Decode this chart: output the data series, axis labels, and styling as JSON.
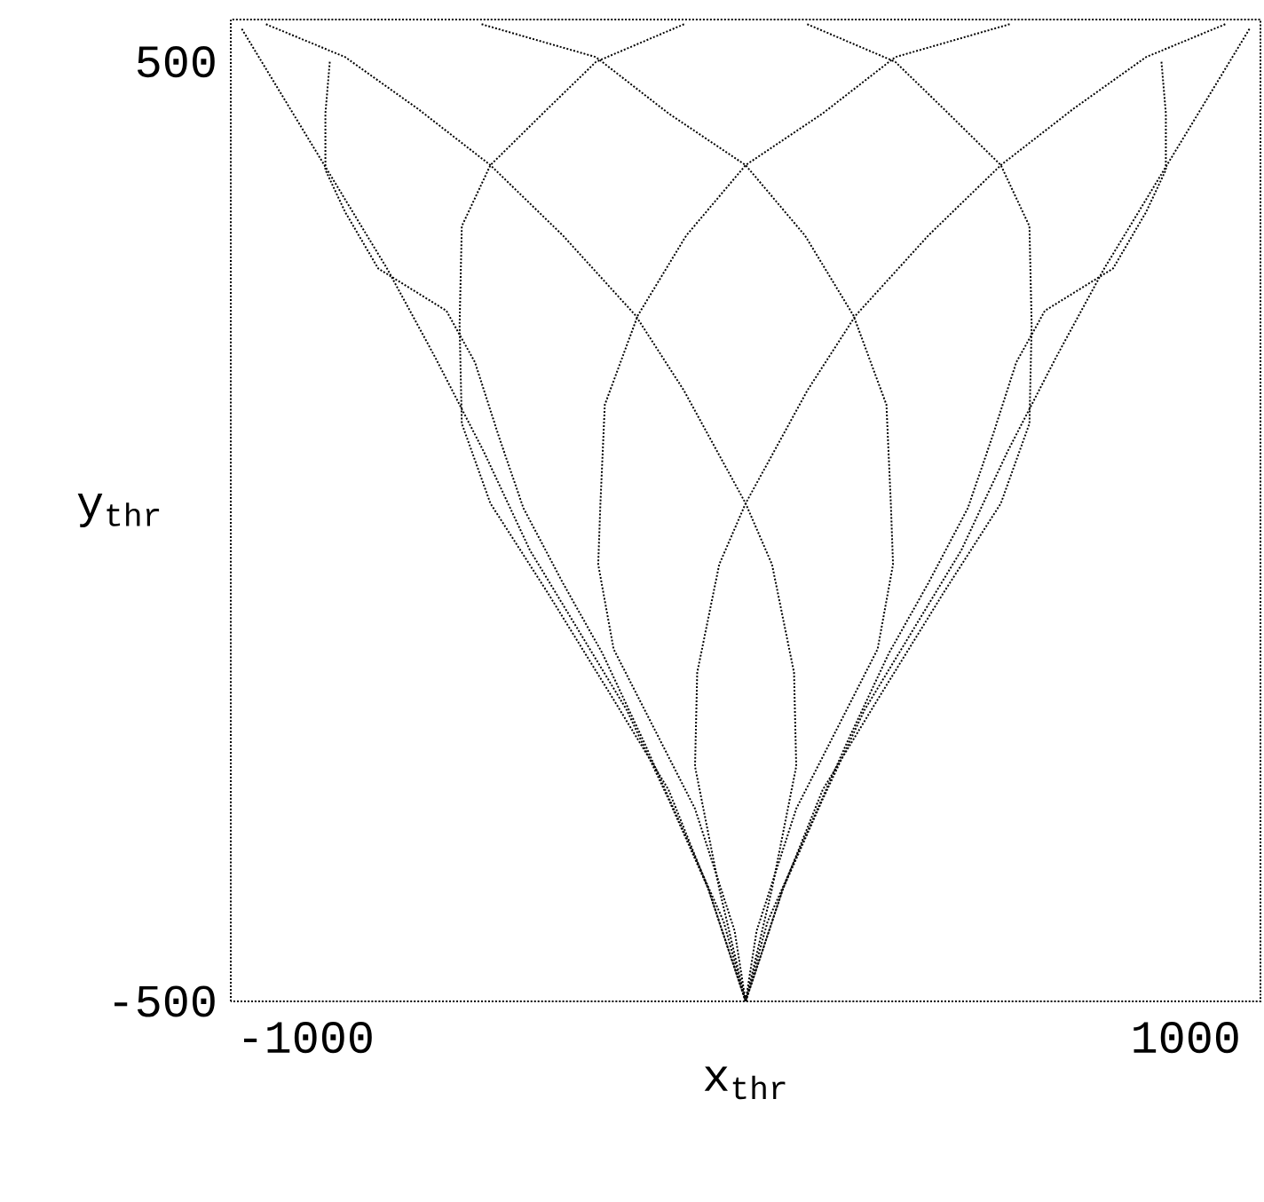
{
  "chart_data": {
    "type": "line",
    "xlabel": "x$_{thr}$",
    "ylabel": "y$_{thr}$",
    "xlim": [
      -1170,
      1170
    ],
    "ylim": [
      -500,
      545
    ],
    "xticks": [
      -1000,
      1000
    ],
    "yticks": [
      -500,
      500
    ],
    "marker": "none",
    "line_style": "dotted",
    "series": [
      {
        "color": "#000000",
        "x": [
          -1145,
          -1035,
          -925,
          -815,
          -705,
          -595,
          -490,
          -380,
          -270,
          -175,
          -85,
          0
        ],
        "values": [
          535,
          450,
          365,
          280,
          185,
          85,
          -20,
          -105,
          -190,
          -285,
          -380,
          -500
        ]
      },
      {
        "color": "#000000",
        "x": [
          1145,
          1035,
          925,
          815,
          705,
          595,
          490,
          380,
          270,
          175,
          85,
          0
        ],
        "values": [
          535,
          450,
          365,
          280,
          185,
          85,
          -20,
          -105,
          -190,
          -285,
          -380,
          -500
        ]
      },
      {
        "color": "#000000",
        "x": [
          -945,
          -955,
          -955,
          -910,
          -835,
          -680,
          -615,
          -560,
          -505,
          -415,
          -325,
          -230,
          -140,
          -50,
          0
        ],
        "values": [
          500,
          445,
          385,
          340,
          280,
          235,
          180,
          100,
          25,
          -55,
          -130,
          -225,
          -320,
          -415,
          -500
        ]
      },
      {
        "color": "#000000",
        "x": [
          945,
          955,
          955,
          910,
          835,
          680,
          615,
          560,
          505,
          415,
          325,
          230,
          140,
          50,
          0
        ],
        "values": [
          500,
          445,
          385,
          340,
          280,
          235,
          180,
          100,
          25,
          -55,
          -130,
          -225,
          -320,
          -415,
          -500
        ]
      },
      {
        "color": "#000000",
        "x": [
          -1090,
          -910,
          -745,
          -580,
          -415,
          -250,
          -140,
          0,
          60,
          110,
          115,
          60,
          0
        ],
        "values": [
          540,
          505,
          450,
          390,
          315,
          230,
          150,
          30,
          -35,
          -150,
          -250,
          -380,
          -500
        ]
      },
      {
        "color": "#000000",
        "x": [
          1090,
          910,
          745,
          580,
          415,
          250,
          140,
          0,
          -60,
          -110,
          -115,
          -60,
          0
        ],
        "values": [
          540,
          505,
          450,
          390,
          315,
          230,
          150,
          30,
          -35,
          -150,
          -250,
          -380,
          -500
        ]
      },
      {
        "color": "#000000",
        "x": [
          -600,
          -340,
          -175,
          0,
          135,
          245,
          320,
          330,
          335,
          300,
          115,
          25,
          0
        ],
        "values": [
          540,
          505,
          445,
          390,
          315,
          230,
          135,
          30,
          -35,
          -125,
          -295,
          -425,
          -500
        ]
      },
      {
        "color": "#000000",
        "x": [
          600,
          340,
          175,
          0,
          -135,
          -245,
          -320,
          -330,
          -335,
          -300,
          -115,
          -25,
          0
        ],
        "values": [
          540,
          505,
          445,
          390,
          315,
          230,
          135,
          30,
          -35,
          -125,
          -295,
          -425,
          -500
        ]
      },
      {
        "color": "#000000",
        "x": [
          -140,
          -340,
          -450,
          -580,
          -645,
          -650,
          -645,
          -580,
          -450,
          -305,
          -175,
          -85,
          0
        ],
        "values": [
          540,
          500,
          450,
          390,
          325,
          220,
          115,
          30,
          -65,
          -175,
          -275,
          -380,
          -500
        ]
      },
      {
        "color": "#000000",
        "x": [
          140,
          340,
          450,
          580,
          645,
          650,
          645,
          580,
          450,
          305,
          175,
          85,
          0
        ],
        "values": [
          540,
          500,
          450,
          390,
          325,
          220,
          115,
          30,
          -65,
          -175,
          -275,
          -380,
          -500
        ]
      }
    ]
  }
}
